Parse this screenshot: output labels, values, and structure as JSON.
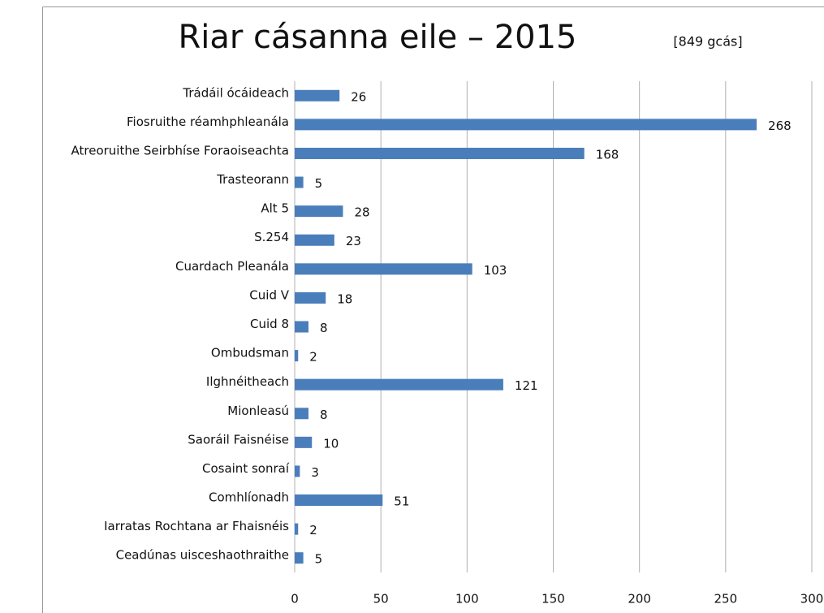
{
  "chart_data": {
    "type": "bar",
    "orientation": "horizontal",
    "title": "Riar cásanna eile – 2015",
    "subtitle": "[849 gcás]",
    "categories": [
      "Trádáil ócáideach",
      "Fiosruithe réamhphleanála",
      "Atreoruithe Seirbhíse Foraoiseachta",
      "Trasteorann",
      "Alt 5",
      "S.254",
      "Cuardach Pleanála",
      "Cuid V",
      "Cuid 8",
      "Ombudsman",
      "Ilghnéitheach",
      "Mionleasú",
      "Saoráil Faisnéise",
      "Cosaint sonraí",
      "Comhlíonadh",
      "Iarratas Rochtana ar Fhaisnéis",
      "Ceadúnas uisceshaothraithe"
    ],
    "values": [
      26,
      268,
      168,
      5,
      28,
      23,
      103,
      18,
      8,
      2,
      121,
      8,
      10,
      3,
      51,
      2,
      5
    ],
    "color": "#4a7ebb",
    "xlim": [
      0,
      300
    ],
    "xticks": [
      0,
      50,
      100,
      150,
      200,
      250,
      300
    ],
    "grid": true
  }
}
